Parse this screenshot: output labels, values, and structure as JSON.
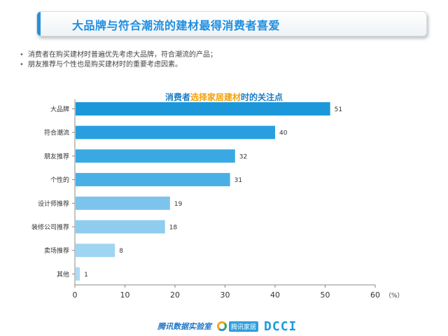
{
  "header": {
    "title": "大品牌与符合潮流的建材最得消费者喜爱"
  },
  "bullets": [
    "消费者在购买建材时普遍优先考虑大品牌，符合潮流的产品；",
    "朋友推荐与个性也是购买建材时的重要考虑因素。"
  ],
  "chart_title": {
    "part1": "消费者",
    "part2": "选择家居建材",
    "part3": "时的关注点"
  },
  "chart_data": {
    "type": "bar",
    "orientation": "horizontal",
    "title": "消费者选择家居建材时的关注点",
    "categories": [
      "大品牌",
      "符合潮流",
      "朋友推荐",
      "个性的",
      "设计师推荐",
      "装修公司推荐",
      "卖场推荐",
      "其他"
    ],
    "values": [
      51,
      40,
      32,
      31,
      19,
      18,
      8,
      1
    ],
    "xlim": [
      0,
      60
    ],
    "xticks": [
      0,
      10,
      20,
      30,
      40,
      50,
      60
    ],
    "unit": "（%）",
    "colors": [
      "#1b97da",
      "#2a9fdf",
      "#3aa8e3",
      "#49b0e6",
      "#7cc4ec",
      "#8fcdef",
      "#9fd4f2",
      "#aedaf4"
    ],
    "grid": false
  },
  "footer": {
    "logo1": "腾讯数据实验室",
    "logo2": "腾讯家居",
    "logo3": "DCCI"
  }
}
